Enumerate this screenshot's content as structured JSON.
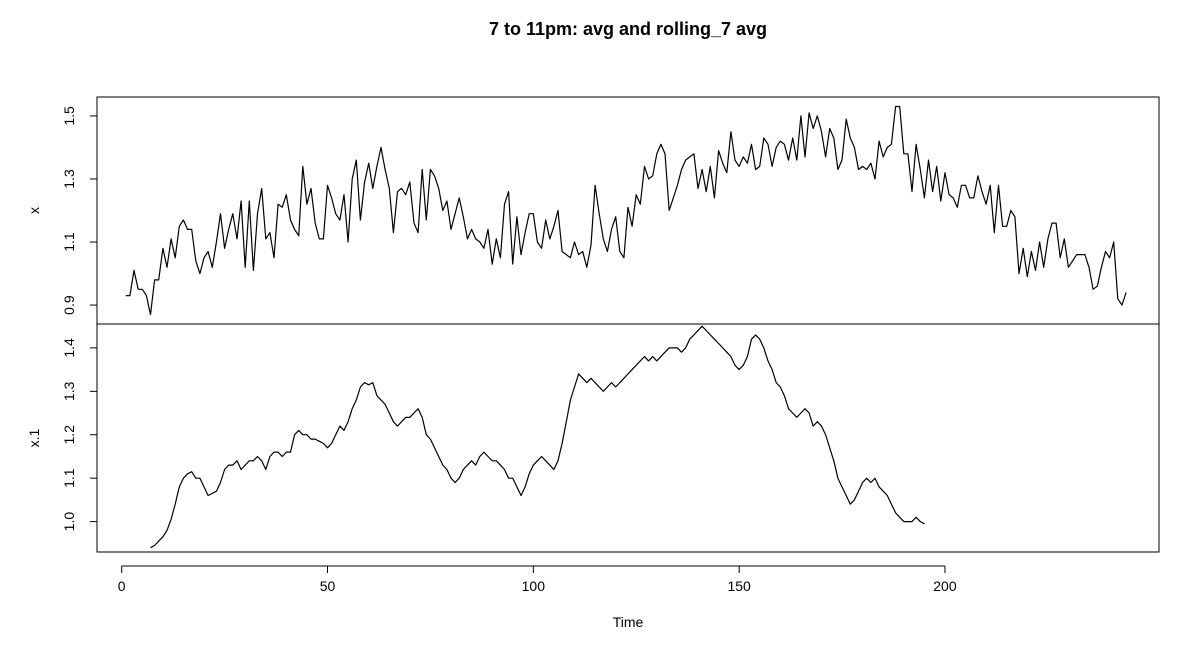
{
  "chart_data": {
    "type": "line",
    "title": "7 to 11pm: avg and rolling_7 avg",
    "xlabel": "Time",
    "xlim": [
      -6,
      252
    ],
    "x_ticks": [
      {
        "value": 0,
        "label": "0"
      },
      {
        "value": 50,
        "label": "50"
      },
      {
        "value": 100,
        "label": "100"
      },
      {
        "value": 150,
        "label": "150"
      },
      {
        "value": 200,
        "label": "200"
      }
    ],
    "panels": [
      {
        "name": "x",
        "ylabel": "x",
        "ylim": [
          0.84,
          1.56
        ],
        "y_ticks": [
          {
            "value": 0.9,
            "label": "0.9"
          },
          {
            "value": 1.1,
            "label": "1.1"
          },
          {
            "value": 1.3,
            "label": "1.3"
          },
          {
            "value": 1.5,
            "label": "1.5"
          }
        ],
        "series": {
          "name": "x",
          "x_start": 1,
          "values": [
            0.93,
            0.93,
            1.01,
            0.95,
            0.95,
            0.93,
            0.87,
            0.98,
            0.98,
            1.08,
            1.02,
            1.11,
            1.05,
            1.15,
            1.17,
            1.14,
            1.14,
            1.04,
            1.0,
            1.05,
            1.07,
            1.02,
            1.1,
            1.19,
            1.08,
            1.14,
            1.19,
            1.11,
            1.23,
            1.02,
            1.23,
            1.01,
            1.19,
            1.27,
            1.11,
            1.13,
            1.05,
            1.22,
            1.21,
            1.25,
            1.17,
            1.14,
            1.12,
            1.34,
            1.22,
            1.27,
            1.16,
            1.11,
            1.11,
            1.28,
            1.24,
            1.19,
            1.17,
            1.25,
            1.1,
            1.3,
            1.36,
            1.17,
            1.29,
            1.35,
            1.27,
            1.34,
            1.4,
            1.33,
            1.27,
            1.13,
            1.26,
            1.27,
            1.25,
            1.29,
            1.16,
            1.13,
            1.33,
            1.17,
            1.33,
            1.31,
            1.27,
            1.2,
            1.23,
            1.14,
            1.19,
            1.24,
            1.18,
            1.11,
            1.14,
            1.11,
            1.1,
            1.08,
            1.14,
            1.03,
            1.11,
            1.05,
            1.22,
            1.26,
            1.03,
            1.18,
            1.06,
            1.13,
            1.19,
            1.19,
            1.1,
            1.08,
            1.17,
            1.11,
            1.15,
            1.2,
            1.07,
            1.06,
            1.05,
            1.1,
            1.06,
            1.07,
            1.02,
            1.09,
            1.28,
            1.19,
            1.11,
            1.07,
            1.14,
            1.18,
            1.07,
            1.05,
            1.21,
            1.15,
            1.25,
            1.22,
            1.34,
            1.3,
            1.31,
            1.38,
            1.41,
            1.38,
            1.2,
            1.24,
            1.28,
            1.33,
            1.36,
            1.37,
            1.38,
            1.27,
            1.33,
            1.26,
            1.34,
            1.24,
            1.39,
            1.35,
            1.32,
            1.45,
            1.36,
            1.34,
            1.37,
            1.35,
            1.41,
            1.33,
            1.34,
            1.43,
            1.41,
            1.34,
            1.4,
            1.42,
            1.41,
            1.36,
            1.43,
            1.36,
            1.5,
            1.37,
            1.51,
            1.46,
            1.5,
            1.45,
            1.37,
            1.46,
            1.43,
            1.33,
            1.36,
            1.49,
            1.43,
            1.4,
            1.33,
            1.34,
            1.33,
            1.35,
            1.3,
            1.42,
            1.37,
            1.4,
            1.41,
            1.53,
            1.53,
            1.38,
            1.38,
            1.26,
            1.41,
            1.33,
            1.24,
            1.36,
            1.26,
            1.34,
            1.23,
            1.32,
            1.25,
            1.24,
            1.21,
            1.28,
            1.28,
            1.24,
            1.24,
            1.31,
            1.26,
            1.22,
            1.28,
            1.13,
            1.28,
            1.15,
            1.15,
            1.2,
            1.18,
            1.0,
            1.08,
            0.99,
            1.07,
            1.01,
            1.1,
            1.02,
            1.11,
            1.16,
            1.16,
            1.05,
            1.11,
            1.02,
            1.04,
            1.06,
            1.06,
            1.06,
            1.02,
            0.95,
            0.96,
            1.02,
            1.07,
            1.05,
            1.1,
            0.92,
            0.9,
            0.94
          ]
        }
      },
      {
        "name": "x.1",
        "ylabel": "x.1",
        "ylim": [
          0.93,
          1.455
        ],
        "y_ticks": [
          {
            "value": 1.0,
            "label": "1.0"
          },
          {
            "value": 1.1,
            "label": "1.1"
          },
          {
            "value": 1.2,
            "label": "1.2"
          },
          {
            "value": 1.3,
            "label": "1.3"
          },
          {
            "value": 1.4,
            "label": "1.4"
          }
        ],
        "series": {
          "name": "x.1",
          "x_start": 7,
          "values": [
            0.94,
            0.945,
            0.955,
            0.965,
            0.98,
            1.005,
            1.04,
            1.08,
            1.1,
            1.11,
            1.115,
            1.1,
            1.1,
            1.08,
            1.06,
            1.065,
            1.07,
            1.09,
            1.12,
            1.13,
            1.13,
            1.14,
            1.12,
            1.13,
            1.14,
            1.14,
            1.15,
            1.14,
            1.12,
            1.15,
            1.16,
            1.16,
            1.15,
            1.16,
            1.16,
            1.2,
            1.21,
            1.2,
            1.2,
            1.19,
            1.19,
            1.185,
            1.18,
            1.17,
            1.18,
            1.2,
            1.22,
            1.21,
            1.23,
            1.26,
            1.28,
            1.31,
            1.32,
            1.315,
            1.32,
            1.29,
            1.28,
            1.27,
            1.25,
            1.23,
            1.22,
            1.23,
            1.24,
            1.24,
            1.25,
            1.26,
            1.24,
            1.2,
            1.19,
            1.17,
            1.15,
            1.13,
            1.12,
            1.1,
            1.09,
            1.1,
            1.12,
            1.13,
            1.14,
            1.13,
            1.15,
            1.16,
            1.15,
            1.14,
            1.14,
            1.13,
            1.12,
            1.1,
            1.1,
            1.08,
            1.06,
            1.08,
            1.11,
            1.13,
            1.14,
            1.15,
            1.14,
            1.13,
            1.12,
            1.14,
            1.18,
            1.23,
            1.28,
            1.31,
            1.34,
            1.33,
            1.32,
            1.33,
            1.32,
            1.31,
            1.3,
            1.31,
            1.32,
            1.31,
            1.32,
            1.33,
            1.34,
            1.35,
            1.36,
            1.37,
            1.38,
            1.37,
            1.38,
            1.37,
            1.38,
            1.39,
            1.4,
            1.4,
            1.4,
            1.39,
            1.4,
            1.42,
            1.43,
            1.44,
            1.45,
            1.44,
            1.43,
            1.42,
            1.41,
            1.4,
            1.39,
            1.38,
            1.36,
            1.35,
            1.36,
            1.38,
            1.42,
            1.43,
            1.42,
            1.4,
            1.37,
            1.35,
            1.32,
            1.31,
            1.29,
            1.26,
            1.25,
            1.24,
            1.25,
            1.26,
            1.25,
            1.22,
            1.23,
            1.22,
            1.2,
            1.17,
            1.14,
            1.1,
            1.08,
            1.06,
            1.04,
            1.05,
            1.07,
            1.09,
            1.1,
            1.09,
            1.1,
            1.08,
            1.07,
            1.06,
            1.04,
            1.02,
            1.01,
            1.0,
            1.0,
            1.0,
            1.01,
            1.0,
            0.995
          ]
        }
      }
    ]
  }
}
